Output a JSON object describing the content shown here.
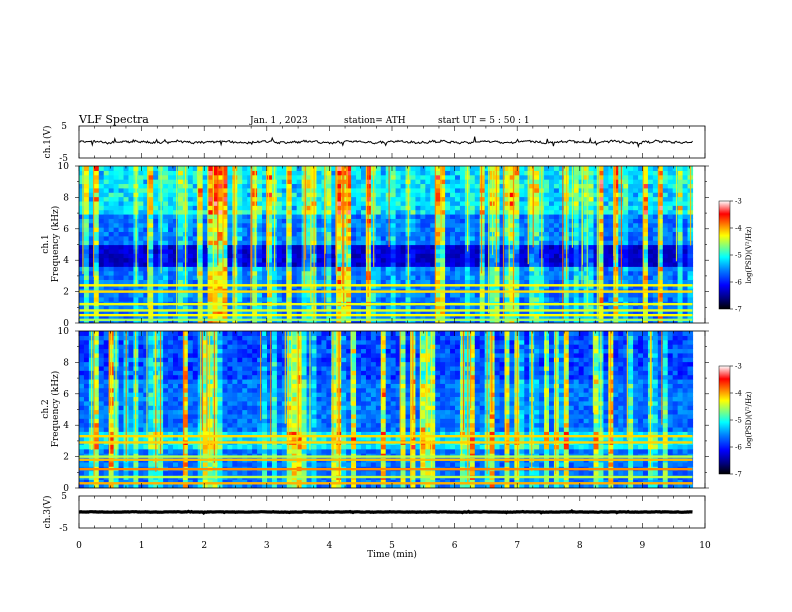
{
  "header": {
    "title": "VLF  Spectra",
    "date": "Jan.  1  ,  2023",
    "station": "station= ATH",
    "start": "start  UT  =    5  : 50 : 1"
  },
  "colors": {
    "colormap": [
      "#000000",
      "#00007f",
      "#0000ff",
      "#007fff",
      "#00ffff",
      "#7fff7f",
      "#ffff00",
      "#ff7f00",
      "#ff0000",
      "#ffffff"
    ]
  },
  "chart_data": [
    {
      "type": "line",
      "panel": "ch1-waveform",
      "ylabel": "ch.1(V)",
      "ylim": [
        -5,
        5
      ],
      "yticks": [
        "5",
        "-5"
      ],
      "trace_mean_v": 0,
      "trace_amplitude_v": 0.6
    },
    {
      "type": "heatmap",
      "panel": "ch1-spectrogram",
      "ylabel_line1": "ch.1",
      "ylabel_line2": "Frequency  (kHz)",
      "ylim": [
        0,
        10
      ],
      "yticks": [
        "0",
        "2",
        "4",
        "6",
        "8",
        "10"
      ],
      "x_range_min": [
        0,
        9.8
      ],
      "colorbar": {
        "label": "log(PSD)(V²/Hz)",
        "range": [
          -7,
          -3
        ],
        "ticks": [
          "-3",
          "-4",
          "-5",
          "-6",
          "-7"
        ]
      },
      "strong_bands_khz": [
        0.2,
        0.5,
        0.8,
        1.2,
        2.0,
        2.4
      ],
      "dark_band_khz": [
        3.5,
        5.0
      ]
    },
    {
      "type": "heatmap",
      "panel": "ch2-spectrogram",
      "ylabel_line1": "ch.2",
      "ylabel_line2": "Frequency  (kHz)",
      "ylim": [
        0,
        10
      ],
      "yticks": [
        "0",
        "2",
        "4",
        "6",
        "8",
        "10"
      ],
      "x_range_min": [
        0,
        9.8
      ],
      "colorbar": {
        "label": "log(PSD)(V²/Hz)",
        "range": [
          -7,
          -3
        ],
        "ticks": [
          "-3",
          "-4",
          "-5",
          "-6",
          "-7"
        ]
      },
      "strong_bands_khz": [
        0.3,
        0.7,
        1.2,
        1.8,
        2.0,
        2.9,
        3.3
      ],
      "dark_band_khz": [
        7.0,
        10.0
      ]
    },
    {
      "type": "line",
      "panel": "ch3-waveform",
      "ylabel": "ch.3(V)",
      "ylim": [
        -5,
        5
      ],
      "yticks": [
        "5",
        "-5"
      ],
      "trace_mean_v": 0,
      "trace_amplitude_v": 0.1
    }
  ],
  "xaxis": {
    "label": "Time  (min)",
    "range": [
      0,
      10
    ],
    "ticks": [
      "0",
      "1",
      "2",
      "3",
      "4",
      "5",
      "6",
      "7",
      "8",
      "9",
      "10"
    ]
  }
}
